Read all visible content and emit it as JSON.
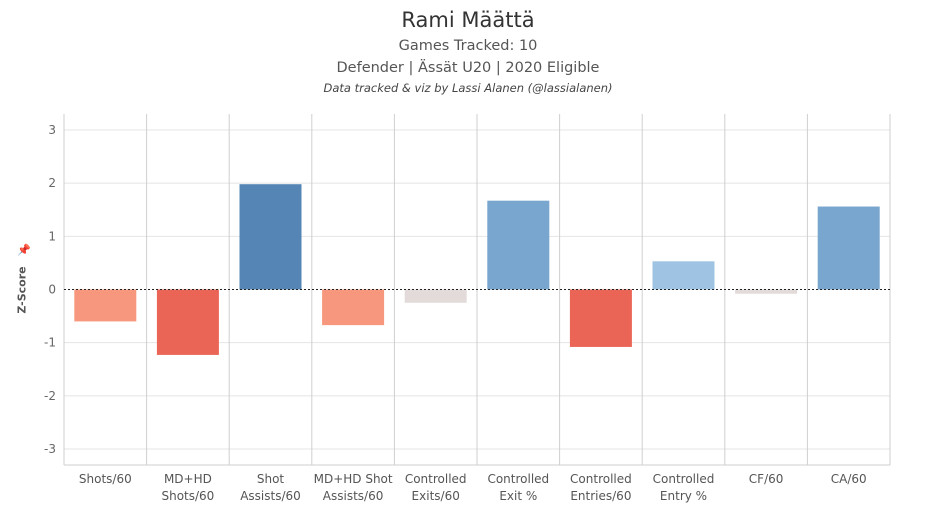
{
  "header": {
    "title": "Rami Määttä",
    "games": "Games Tracked: 10",
    "info": "Defender | Ässät U20 | 2020 Eligible",
    "credit": "Data tracked & viz by Lassi Alanen (@lassialanen)"
  },
  "chart_data": {
    "type": "bar",
    "title": "Rami Määttä",
    "ylabel": "Z-Score",
    "xlabel": "",
    "ylim": [
      -3.3,
      3.3
    ],
    "yticks": [
      "3",
      "2",
      "1",
      "0",
      "-1",
      "-2",
      "-3"
    ],
    "ytick_values": [
      3,
      2,
      1,
      0,
      -1,
      -2,
      -3
    ],
    "grid": true,
    "categories": [
      [
        "Shots/60"
      ],
      [
        "MD+HD",
        "Shots/60"
      ],
      [
        "Shot",
        "Assists/60"
      ],
      [
        "MD+HD Shot",
        "Assists/60"
      ],
      [
        "Controlled",
        "Exits/60"
      ],
      [
        "Controlled",
        "Exit %"
      ],
      [
        "Controlled",
        "Entries/60"
      ],
      [
        "Controlled",
        "Entry %"
      ],
      [
        "CF/60"
      ],
      [
        "CA/60"
      ]
    ],
    "values": [
      -0.6,
      -1.23,
      1.98,
      -0.67,
      -0.25,
      1.67,
      -1.08,
      0.53,
      -0.08,
      1.56
    ],
    "colors": [
      "#f7987e",
      "#ea6556",
      "#5585b5",
      "#f7987e",
      "#e3dbd9",
      "#79a6cf",
      "#ea6556",
      "#9fc4e3",
      "#e3dbd9",
      "#79a6cf"
    ]
  }
}
